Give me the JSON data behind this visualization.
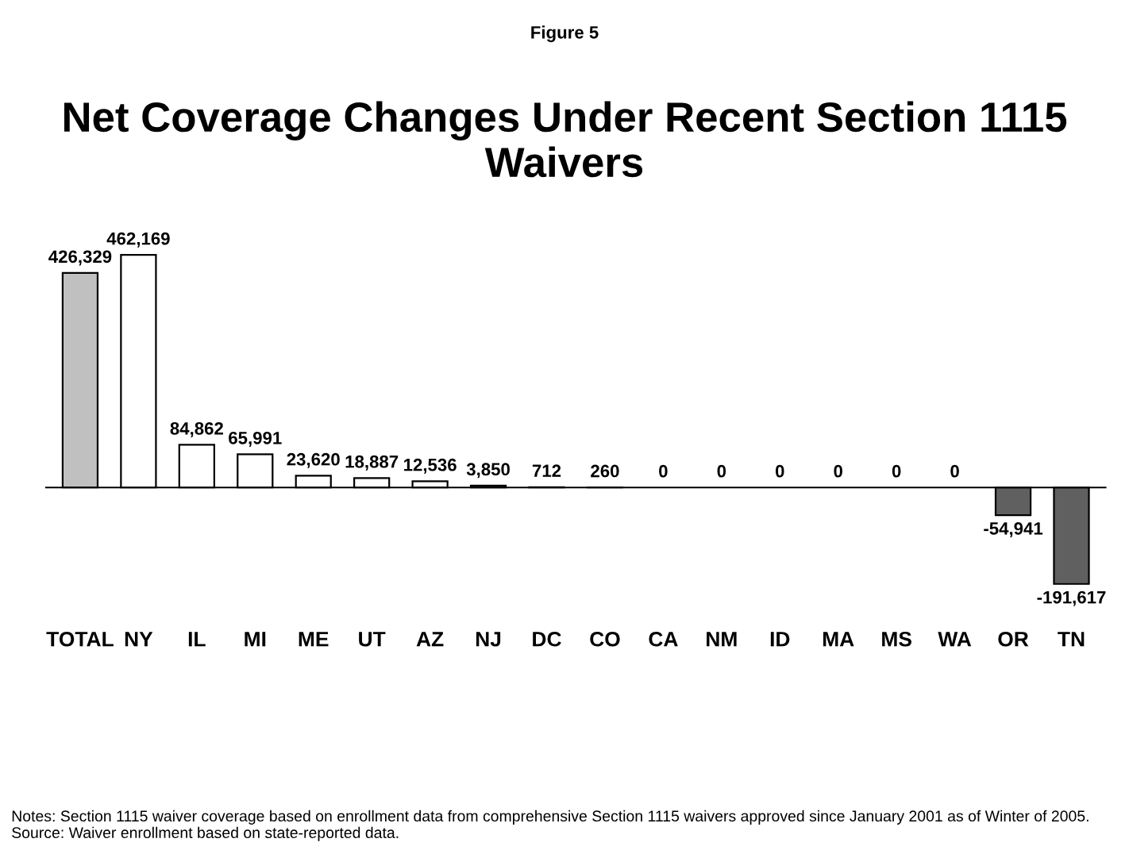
{
  "chart_data": {
    "type": "bar",
    "title": "Net Coverage Changes Under Recent Section 1115 Waivers",
    "subtitle": "Figure 5",
    "categories": [
      "TOTAL",
      "NY",
      "IL",
      "MI",
      "ME",
      "UT",
      "AZ",
      "NJ",
      "DC",
      "CO",
      "CA",
      "NM",
      "ID",
      "MA",
      "MS",
      "WA",
      "OR",
      "TN"
    ],
    "values": [
      426329,
      462169,
      84862,
      65991,
      23620,
      18887,
      12536,
      3850,
      712,
      260,
      0,
      0,
      0,
      0,
      0,
      0,
      -54941,
      -191617
    ],
    "colors": [
      "#c0c0c0",
      "#ffffff",
      "#ffffff",
      "#ffffff",
      "#ffffff",
      "#ffffff",
      "#ffffff",
      "#ffffff",
      "#ffffff",
      "#ffffff",
      "#ffffff",
      "#ffffff",
      "#ffffff",
      "#ffffff",
      "#ffffff",
      "#ffffff",
      "#606060",
      "#606060"
    ],
    "value_labels": [
      "426,329",
      "462,169",
      "84,862",
      "65,991",
      "23,620",
      "18,887",
      "12,536",
      "3,850",
      "712",
      "260",
      "0",
      "0",
      "0",
      "0",
      "0",
      "0",
      "-54,941",
      "-191,617"
    ],
    "annotations": [
      "Notes: Section 1115 waiver coverage based on enrollment data from comprehensive Section 1115 waivers approved since January 2001 as of Winter of 2005.\nSource: Waiver enrollment based on state-reported data."
    ]
  }
}
